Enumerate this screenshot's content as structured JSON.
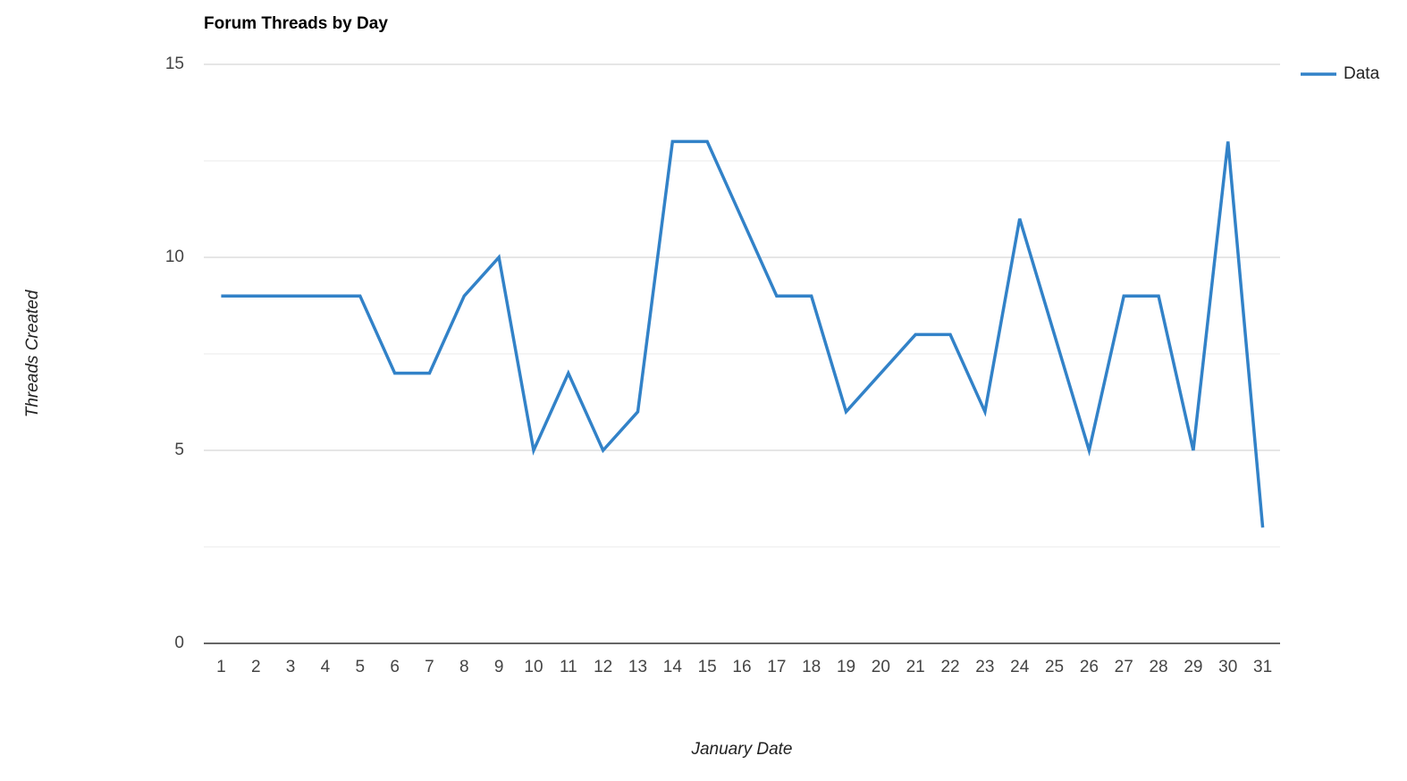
{
  "chart_data": {
    "type": "line",
    "title": "Forum Threads by Day",
    "x_label": "January Date",
    "y_label": "Threads Created",
    "categories": [
      "1",
      "2",
      "3",
      "4",
      "5",
      "6",
      "7",
      "8",
      "9",
      "10",
      "11",
      "12",
      "13",
      "14",
      "15",
      "16",
      "17",
      "18",
      "19",
      "20",
      "21",
      "22",
      "23",
      "24",
      "25",
      "26",
      "27",
      "28",
      "29",
      "30",
      "31"
    ],
    "series": [
      {
        "name": "Data",
        "color": "#3282c8",
        "values": [
          9,
          9,
          9,
          9,
          9,
          7,
          7,
          9,
          10,
          5,
          7,
          5,
          6,
          13,
          13,
          11,
          9,
          9,
          6,
          7,
          8,
          8,
          6,
          11,
          8,
          5,
          9,
          9,
          5,
          13,
          3
        ]
      }
    ],
    "ylim": [
      0,
      15
    ],
    "yticks": [
      0,
      5,
      10,
      15
    ],
    "minor_yticks": [
      2.5,
      7.5,
      12.5
    ],
    "grid": true,
    "legend": "right"
  }
}
